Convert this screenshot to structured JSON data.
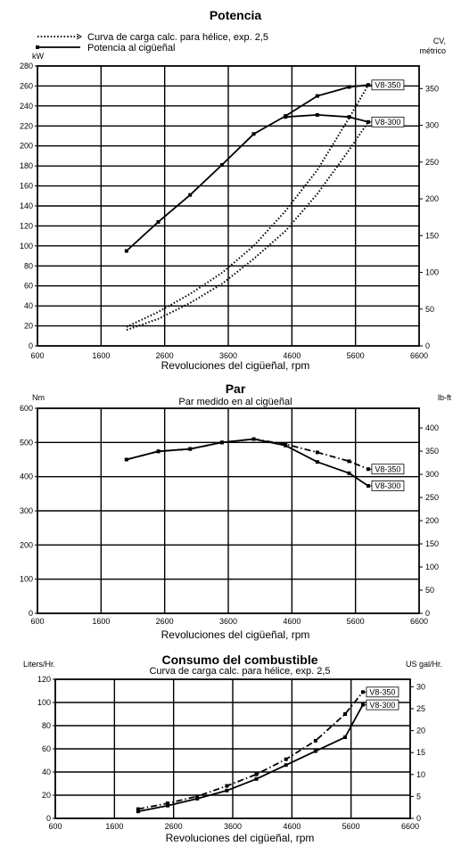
{
  "chart_data": [
    {
      "type": "line",
      "title": "Potencia",
      "subtitle": "",
      "xlabel": "Revoluciones del cigüeñal, rpm",
      "ylabel_left": "kW",
      "ylabel_right": "CV, métrico",
      "xlim": [
        600,
        6600
      ],
      "ylim": [
        0,
        280
      ],
      "ylim_right": [
        0,
        380.7
      ],
      "x_ticks": [
        600,
        1600,
        2600,
        3600,
        4600,
        5600,
        6600
      ],
      "y_ticks_left": [
        0,
        20,
        40,
        60,
        80,
        100,
        120,
        140,
        160,
        180,
        200,
        220,
        240,
        260,
        280
      ],
      "y_ticks_right": [
        0,
        50,
        100,
        150,
        200,
        250,
        300,
        350
      ],
      "grid": true,
      "legend": {
        "placement": "top-left",
        "entries": [
          {
            "label": "Curva de carga calc. para hélice, exp. 2,5",
            "style": "dotted"
          },
          {
            "label": "Potencia al cigüeñal",
            "style": "solid"
          }
        ]
      },
      "series": [
        {
          "name": "V8-350",
          "kind": "solid",
          "tag": "V8-350",
          "x": [
            2000,
            2500,
            3000,
            3500,
            4000,
            4500,
            5000,
            5500,
            5800
          ],
          "y": [
            95,
            124,
            151,
            181,
            212,
            230,
            250,
            259,
            261
          ]
        },
        {
          "name": "V8-300",
          "kind": "solid",
          "tag": "V8-300",
          "x": [
            4500,
            5000,
            5500,
            5800
          ],
          "y": [
            229,
            231,
            229,
            224
          ]
        },
        {
          "name": "V8-350",
          "kind": "dotted",
          "x": [
            2000,
            2500,
            3000,
            3500,
            4000,
            4500,
            5000,
            5500,
            5800
          ],
          "y": [
            19,
            34,
            52,
            73,
            100,
            135,
            176,
            228,
            261
          ]
        },
        {
          "name": "V8-300",
          "kind": "dotted",
          "x": [
            2000,
            2500,
            3000,
            3500,
            4000,
            4500,
            5000,
            5500,
            5800
          ],
          "y": [
            16,
            27,
            43,
            62,
            87,
            115,
            152,
            196,
            224
          ]
        }
      ]
    },
    {
      "type": "line",
      "title": "Par",
      "subtitle": "Par medido en al cigüeñal",
      "xlabel": "Revoluciones del cigüeñal, rpm",
      "ylabel_left": "Nm",
      "ylabel_right": "lb-ft",
      "xlim": [
        600,
        6600
      ],
      "ylim": [
        0,
        600
      ],
      "ylim_right": [
        0,
        442.5
      ],
      "x_ticks": [
        600,
        1600,
        2600,
        3600,
        4600,
        5600,
        6600
      ],
      "y_ticks_left": [
        0,
        100,
        200,
        300,
        400,
        500,
        600
      ],
      "y_ticks_right": [
        0,
        50,
        100,
        150,
        200,
        250,
        300,
        350,
        400
      ],
      "grid": true,
      "series": [
        {
          "name": "V8-350",
          "kind": "dashdot",
          "tag": "V8-350",
          "x": [
            2000,
            2500,
            3000,
            3500,
            4000,
            4500,
            5000,
            5500,
            5800
          ],
          "y": [
            450,
            474,
            481,
            500,
            510,
            495,
            471,
            445,
            422
          ]
        },
        {
          "name": "V8-300",
          "kind": "solid",
          "tag": "V8-300",
          "x": [
            2000,
            2500,
            3000,
            3500,
            4000,
            4500,
            5000,
            5500,
            5800
          ],
          "y": [
            450,
            474,
            481,
            500,
            510,
            491,
            443,
            410,
            373
          ]
        }
      ]
    },
    {
      "type": "line",
      "title": "Consumo del combustible",
      "subtitle": "Curva de carga calc. para hélice, exp. 2,5",
      "xlabel": "Revoluciones del cigüeñal, rpm",
      "ylabel_left": "Liters/Hr.",
      "ylabel_right": "US gal/Hr.",
      "xlim": [
        600,
        6600
      ],
      "ylim": [
        0,
        120
      ],
      "ylim_right": [
        0,
        31.7
      ],
      "x_ticks": [
        600,
        1600,
        2600,
        3600,
        4600,
        5600,
        6600
      ],
      "y_ticks_left": [
        0,
        20,
        40,
        60,
        80,
        100,
        120
      ],
      "y_ticks_right": [
        0,
        5,
        10,
        15,
        20,
        25,
        30
      ],
      "grid": true,
      "series": [
        {
          "name": "V8-350",
          "kind": "dashdot",
          "tag": "V8-350",
          "x": [
            2000,
            2500,
            3000,
            3500,
            4000,
            4500,
            5000,
            5500,
            5800
          ],
          "y": [
            8,
            13,
            19,
            28,
            38,
            51,
            67,
            90,
            109
          ]
        },
        {
          "name": "V8-300",
          "kind": "solid",
          "tag": "V8-300",
          "x": [
            2000,
            2500,
            3000,
            3500,
            4000,
            4500,
            5000,
            5500,
            5800
          ],
          "y": [
            6,
            11,
            17,
            24,
            34,
            46,
            58,
            70,
            98
          ]
        }
      ]
    }
  ]
}
